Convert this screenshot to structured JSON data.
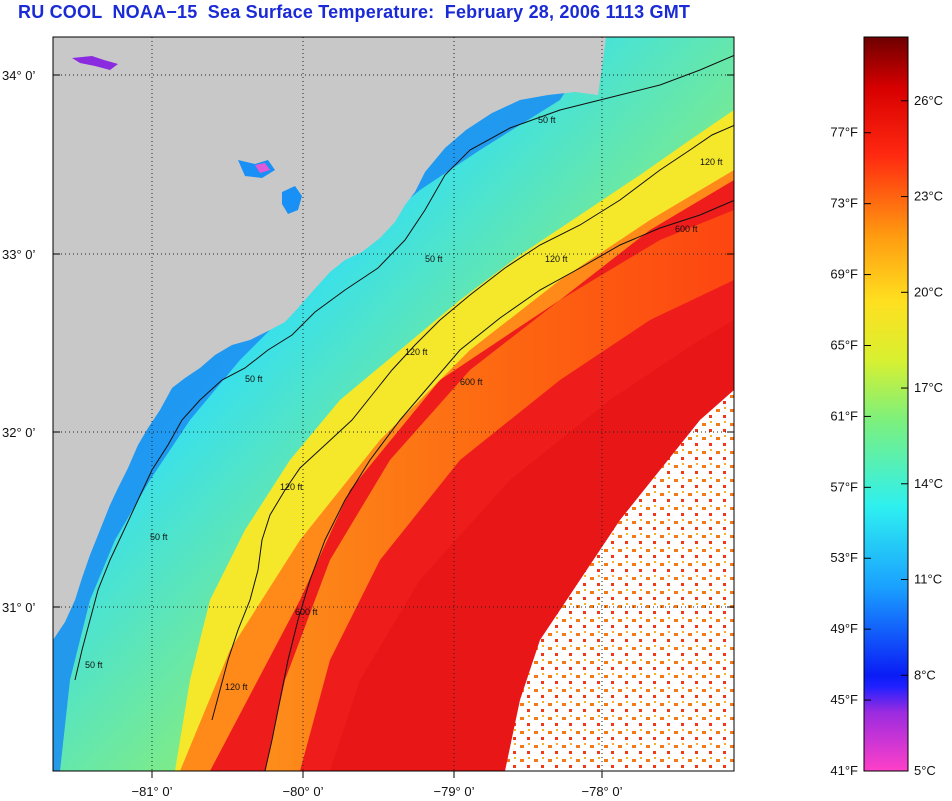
{
  "title": "RU COOL  NOAA−15  Sea Surface Temperature:  February 28, 2006 1113 GMT",
  "map": {
    "latitude_labels": [
      "34° 0’",
      "33° 0’",
      "32° 0’",
      "31° 0’"
    ],
    "longitude_labels": [
      "−81° 0’",
      "−80° 0’",
      "−79° 0’",
      "−78° 0’"
    ],
    "contour_labels": [
      "50 ft",
      "50 ft",
      "50 ft",
      "50 ft",
      "50 ft",
      "120 ft",
      "120 ft",
      "120 ft",
      "120 ft",
      "120 ft",
      "600 ft",
      "600 ft",
      "600 ft"
    ],
    "colors": {
      "land": "#c8c8c8",
      "nodata": "#ffffff",
      "coast_water": "#1fa6ff",
      "shelf_water": "#3ce8e8",
      "mid_shelf": "#f5e82a",
      "gulf_stream": "#ef1c1c",
      "warm_edge": "#ff8a1a"
    }
  },
  "colorbar": {
    "fahrenheit_labels": [
      "77°F",
      "73°F",
      "69°F",
      "65°F",
      "61°F",
      "57°F",
      "53°F",
      "49°F",
      "45°F",
      "41°F"
    ],
    "celsius_labels": [
      "26°C",
      "23°C",
      "20°C",
      "17°C",
      "14°C",
      "11°C",
      "8°C",
      "5°C"
    ],
    "fahrenheit_values": [
      77,
      73,
      69,
      65,
      61,
      57,
      53,
      49,
      45,
      41
    ],
    "celsius_values": [
      26,
      23,
      20,
      17,
      14,
      11,
      8,
      5
    ],
    "range_celsius": [
      5,
      28
    ]
  }
}
